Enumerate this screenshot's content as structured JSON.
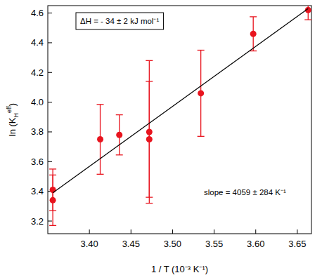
{
  "chart_data": {
    "type": "scatter",
    "xlabel": "1 / T (10⁻³ K⁻¹)",
    "ylabel": {
      "text": "ln (K",
      "sub": "H",
      "sup": "eff",
      "end": ")"
    },
    "annotations": [
      "ΔH = - 34 ± 2 kJ mol⁻¹",
      "slope = 4059 ± 284 K⁻¹"
    ],
    "xlim": [
      3.35,
      3.667
    ],
    "ylim": [
      3.115,
      4.65
    ],
    "xticks": [
      {
        "value": 3.4,
        "label": "3.40"
      },
      {
        "value": 3.45,
        "label": "3.45"
      },
      {
        "value": 3.5,
        "label": "3.50"
      },
      {
        "value": 3.55,
        "label": "3.55"
      },
      {
        "value": 3.6,
        "label": "3.60"
      },
      {
        "value": 3.65,
        "label": "3.65"
      }
    ],
    "yticks": [
      3.2,
      3.4,
      3.6,
      3.8,
      {
        "value": 4,
        "label": "4.0"
      },
      4.2,
      4.4,
      4.6
    ],
    "series": [
      {
        "type": "scatter",
        "marker": "circle",
        "color": "#e8141e",
        "x": [
          3.356,
          3.356,
          3.413,
          3.436,
          3.472,
          3.472,
          3.534,
          3.597,
          3.663
        ],
        "values": [
          3.41,
          3.34,
          3.75,
          3.78,
          3.8,
          3.75,
          4.06,
          4.46,
          4.62
        ],
        "errors": [
          0.14,
          0.17,
          0.235,
          0.135,
          0.48,
          0.39,
          0.29,
          0.115,
          0.065
        ]
      },
      {
        "type": "line",
        "color": "#000000",
        "x": [
          3.356,
          3.663
        ],
        "values": [
          3.39,
          4.63
        ]
      }
    ]
  }
}
